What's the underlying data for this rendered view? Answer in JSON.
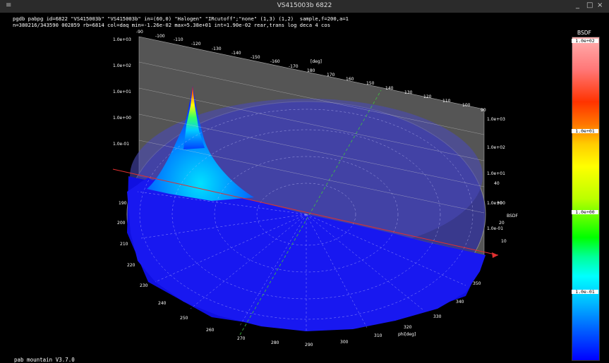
{
  "window": {
    "title": "VS415003b 6822",
    "app_icon": "app-menu-icon",
    "minimize_glyph": "_",
    "maximize_glyph": "□",
    "close_glyph": "×"
  },
  "header": {
    "line1": "pgdb pabpg id=6822 \"VS415003b\" \"VS415003b\" in=(60,0) \"Halogen\" \"IRcutoff\";\"none\" (1,3) (1,2)  sample,f=200,a=1",
    "line2": "n=380216/343590 002859 rb=6814 col=daq min=-1.26e-02 max=5.38e+01 int=1.90e-02 rear,trans log deca 4 cos"
  },
  "footer": "pab mountain V3.7.0",
  "legend": {
    "title": "BSDF",
    "ticks": [
      "1.0e+02",
      "1.0e+01",
      "1.0e+00",
      "1.0e-01"
    ]
  },
  "plot": {
    "theta_unit": "[deg]",
    "phi_unit": "phi[deg]",
    "bsdf_label": "BSDF",
    "back_wall_left_labels": [
      "1.0e+03",
      "1.0e+02",
      "1.0e+01",
      "1.0e+00",
      "1.0e-01"
    ],
    "back_wall_right_labels": [
      "1.0e+03",
      "1.0e+02",
      "1.0e+01",
      "1.0e+00",
      "1.0e-01"
    ],
    "back_wall_theta_labels": [
      "-90",
      "-100",
      "-110",
      "-120",
      "-130",
      "-140",
      "-150",
      "-160",
      "-170",
      "180",
      "170",
      "160",
      "150",
      "140",
      "130",
      "120",
      "110",
      "100",
      "90"
    ],
    "right_numbers": [
      "40",
      "30",
      "20",
      "10"
    ],
    "phi_labels": [
      "190",
      "200",
      "210",
      "220",
      "230",
      "240",
      "250",
      "260",
      "270",
      "280",
      "290",
      "300",
      "310",
      "320",
      "330",
      "340",
      "350"
    ]
  }
}
